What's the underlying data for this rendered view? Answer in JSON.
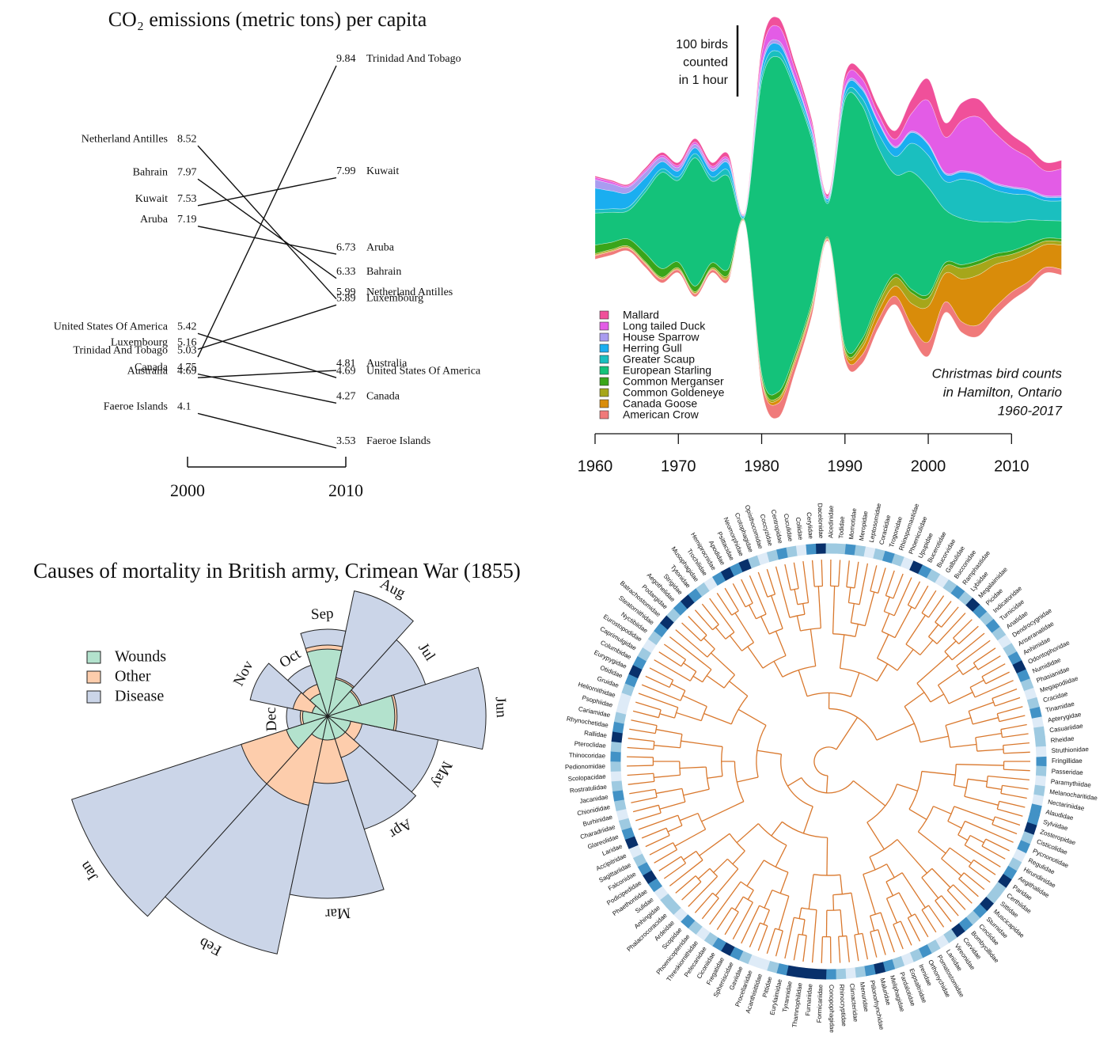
{
  "chart_data": [
    {
      "type": "slope",
      "title": "CO₂ emissions (metric tons) per capita",
      "x": [
        2000,
        2010
      ],
      "series": [
        {
          "name": "Trinidad And Tobago",
          "values": [
            5.03,
            9.84
          ]
        },
        {
          "name": "Netherland Antilles",
          "values": [
            8.52,
            5.99
          ]
        },
        {
          "name": "Bahrain",
          "values": [
            7.97,
            6.33
          ]
        },
        {
          "name": "Kuwait",
          "values": [
            7.53,
            7.99
          ]
        },
        {
          "name": "Aruba",
          "values": [
            7.19,
            6.73
          ]
        },
        {
          "name": "United States Of America",
          "values": [
            5.42,
            4.69
          ]
        },
        {
          "name": "Luxembourg",
          "values": [
            5.16,
            5.89
          ]
        },
        {
          "name": "Canada",
          "values": [
            4.75,
            4.27
          ]
        },
        {
          "name": "Australia",
          "values": [
            4.69,
            4.81
          ]
        },
        {
          "name": "Faeroe Islands",
          "values": [
            4.1,
            3.53
          ]
        }
      ]
    },
    {
      "type": "streamgraph",
      "title": [
        "Christmas bird counts",
        "in Hamilton, Ontario",
        "1960-2017"
      ],
      "annotation": {
        "value": 100,
        "label": [
          "100 birds",
          "counted",
          "in 1 hour"
        ]
      },
      "x": [
        1960,
        1962,
        1964,
        1966,
        1968,
        1970,
        1972,
        1974,
        1976,
        1978,
        1980,
        1982,
        1984,
        1986,
        1988,
        1990,
        1992,
        1994,
        1996,
        1998,
        2000,
        2002,
        2004,
        2006,
        2008,
        2010,
        2012,
        2014,
        2016
      ],
      "xlim": [
        1960,
        2017
      ],
      "xticks": [
        1960,
        1970,
        1980,
        1990,
        2000,
        2010
      ],
      "series": [
        {
          "name": "Mallard",
          "color": "#f0509a",
          "values": [
            2,
            2,
            2,
            3,
            4,
            4,
            5,
            5,
            6,
            1,
            10,
            12,
            8,
            6,
            3,
            8,
            10,
            10,
            12,
            20,
            30,
            20,
            25,
            25,
            20,
            18,
            15,
            12,
            12
          ]
        },
        {
          "name": "Long tailed Duck",
          "color": "#e35ce6",
          "values": [
            3,
            3,
            2,
            3,
            3,
            3,
            3,
            3,
            3,
            1,
            15,
            20,
            12,
            8,
            3,
            10,
            12,
            10,
            10,
            25,
            60,
            50,
            70,
            80,
            70,
            55,
            45,
            35,
            38
          ]
        },
        {
          "name": "House Sparrow",
          "color": "#a99cf0",
          "values": [
            12,
            10,
            8,
            8,
            6,
            5,
            5,
            4,
            4,
            1,
            5,
            5,
            4,
            3,
            1,
            3,
            3,
            2,
            2,
            2,
            2,
            2,
            2,
            2,
            2,
            2,
            2,
            2,
            2
          ]
        },
        {
          "name": "Herring Gull",
          "color": "#1aaef0",
          "values": [
            30,
            25,
            20,
            15,
            10,
            8,
            8,
            8,
            10,
            2,
            10,
            10,
            8,
            6,
            3,
            8,
            12,
            15,
            12,
            15,
            15,
            10,
            10,
            10,
            8,
            8,
            6,
            5,
            5
          ]
        },
        {
          "name": "Greater Scaup",
          "color": "#1abfbf",
          "values": [
            5,
            5,
            5,
            5,
            5,
            5,
            6,
            6,
            8,
            1,
            8,
            8,
            6,
            5,
            3,
            6,
            10,
            20,
            25,
            40,
            45,
            40,
            55,
            55,
            45,
            40,
            35,
            28,
            28
          ]
        },
        {
          "name": "European Starling",
          "color": "#14c27a",
          "values": [
            45,
            42,
            40,
            85,
            135,
            115,
            180,
            115,
            130,
            8,
            410,
            470,
            370,
            230,
            48,
            345,
            330,
            215,
            140,
            165,
            150,
            75,
            65,
            55,
            45,
            40,
            35,
            25,
            25
          ]
        },
        {
          "name": "Common Merganser",
          "color": "#3aa51a",
          "values": [
            12,
            10,
            10,
            12,
            12,
            8,
            8,
            7,
            8,
            1,
            5,
            8,
            6,
            5,
            2,
            5,
            6,
            5,
            5,
            5,
            5,
            5,
            5,
            5,
            5,
            5,
            5,
            4,
            4
          ]
        },
        {
          "name": "Common Goldeneye",
          "color": "#a6a61a",
          "values": [
            2,
            2,
            2,
            2,
            2,
            2,
            2,
            2,
            3,
            0,
            3,
            3,
            3,
            3,
            1,
            3,
            6,
            10,
            12,
            15,
            12,
            10,
            15,
            15,
            10,
            8,
            7,
            5,
            5
          ]
        },
        {
          "name": "Canada Goose",
          "color": "#d98c0a",
          "values": [
            1,
            1,
            1,
            1,
            1,
            1,
            1,
            1,
            2,
            1,
            2,
            5,
            4,
            3,
            1,
            4,
            10,
            12,
            14,
            30,
            50,
            40,
            60,
            70,
            60,
            45,
            40,
            32,
            34
          ]
        },
        {
          "name": "American Crow",
          "color": "#f07a7a",
          "values": [
            5,
            5,
            4,
            5,
            5,
            4,
            4,
            4,
            4,
            1,
            10,
            20,
            12,
            9,
            2,
            8,
            12,
            12,
            12,
            16,
            20,
            15,
            15,
            16,
            13,
            12,
            10,
            8,
            8
          ]
        }
      ]
    },
    {
      "type": "rose",
      "title": "Causes of mortality in British army, Crimean War (1855)",
      "categories": [
        "Jan",
        "Feb",
        "Mar",
        "Apr",
        "May",
        "Jun",
        "Jul",
        "Aug",
        "Sep",
        "Oct",
        "Nov",
        "Dec"
      ],
      "series": [
        {
          "name": "Wounds",
          "color": "#b3e2cd",
          "values": [
            30,
            9,
            9,
            9,
            9,
            72,
            18,
            23,
            72,
            9,
            4,
            10
          ]
        },
        {
          "name": "Other",
          "color": "#fdcdac",
          "values": [
            132,
            132,
            72,
            30,
            20,
            77,
            20,
            25,
            81,
            18,
            20,
            12
          ]
        },
        {
          "name": "Disease",
          "color": "#cbd5e8",
          "values": [
            1156,
            942,
            529,
            225,
            204,
            400,
            169,
            262,
            121,
            46,
            100,
            27
          ]
        }
      ]
    },
    {
      "type": "dendrogram",
      "color": "#d9782d",
      "shade_colors": [
        "#deebf7",
        "#9ecae1",
        "#4292c6",
        "#08306b"
      ],
      "leaves": [
        "Fringillidae",
        "Passeridae",
        "Paramythiidae",
        "Melanocharitidae",
        "Nectariniidae",
        "Alaudidae",
        "Sylviidae",
        "Zosteropidae",
        "Cisticolidae",
        "Pycnonotidae",
        "Regulidae",
        "Hirundinidae",
        "Aegithalidae",
        "Paridae",
        "Certhiidae",
        "Sittidae",
        "Muscicapidae",
        "Sturnidae",
        "Cinclidae",
        "Bombycillidae",
        "Corvidae",
        "Vireonidae",
        "Laniidae",
        "Pomatostomidae",
        "Orthonychidae",
        "Irenidae",
        "Eopsaltriidae",
        "Pardalotidae",
        "Meliphagidae",
        "Maluridae",
        "Ptilonorhynchidae",
        "Menuridae",
        "Climacteridae",
        "Rhinocryptidae",
        "Conopophagidae",
        "Formicariidae",
        "Furnariidae",
        "Thamnophilidae",
        "Tyrannidae",
        "Eurylaimidae",
        "Pittidae",
        "Acanthisittidae",
        "Procellariidae",
        "Gaviidae",
        "Spheniscidae",
        "Fregatidae",
        "Ciconiidae",
        "Pelecanidae",
        "Threskiornithidae",
        "Phoenicopteridae",
        "Scopidae",
        "Ardeidae",
        "Phalacrocoracidae",
        "Anhingidae",
        "Sulidae",
        "Phaethontidae",
        "Podicipedidae",
        "Falconidae",
        "Sagittariidae",
        "Accipitridae",
        "Laridae",
        "Glareolidae",
        "Charadriidae",
        "Burhinidae",
        "Chionididae",
        "Jacanidae",
        "Rostratulidae",
        "Scolopacidae",
        "Pedionomidae",
        "Thinocoridae",
        "Pteroclidae",
        "Rallidae",
        "Rhynochetidae",
        "Cariamidae",
        "Psophiidae",
        "Heliornithidae",
        "Gruidae",
        "Otididae",
        "Eurypygidae",
        "Columbidae",
        "Caprimulgidae",
        "Eurostopodidae",
        "Nyctibiidae",
        "Steatornithidae",
        "Batrachostomidae",
        "Podargidae",
        "Aegothelidae",
        "Strigidae",
        "Tytonidae",
        "Musophagidae",
        "Trochilidae",
        "Hemiprocnidae",
        "Apodidae",
        "Psittacidae",
        "Neomorphidae",
        "Crotophagidae",
        "Opisthocomidae",
        "Coccyzidae",
        "Centropidae",
        "Cuculidae",
        "Coliidae",
        "Cerylidae",
        "Dacelonidae",
        "Alcedinidae",
        "Todidae",
        "Momotidae",
        "Meropidae",
        "Leptosomidae",
        "Coraciidae",
        "Trogonidae",
        "Rhinopomastidae",
        "Phoeniculidae",
        "Upupidae",
        "Bucerotidae",
        "Bucorvidae",
        "Galbulidae",
        "Bucconidae",
        "Ramphastidae",
        "Lybiidae",
        "Megalaimidae",
        "Picidae",
        "Indicatoridae",
        "Turnicidae",
        "Anatidae",
        "Dendrocygnidae",
        "Anseranatidae",
        "Anhimidae",
        "Odontophoridae",
        "Numididae",
        "Phasianidae",
        "Megapodiidae",
        "Cracidae",
        "Tinamidae",
        "Apterygidae",
        "Casuariidae",
        "Rheidae",
        "Struthionidae"
      ],
      "leaf_shades": [
        3,
        2,
        1,
        2,
        1,
        3,
        3,
        4,
        2,
        3,
        1,
        2,
        3,
        4,
        2,
        2,
        4,
        3,
        2,
        3,
        4,
        2,
        1,
        2,
        3,
        2,
        1,
        2,
        3,
        4,
        3,
        2,
        1,
        2,
        3,
        4,
        4,
        4,
        4,
        3,
        2,
        1,
        1,
        2,
        3,
        4,
        3,
        2,
        1,
        2,
        3,
        1,
        2,
        2,
        1,
        3,
        4,
        3,
        2,
        1,
        4,
        3,
        2,
        1,
        2,
        3,
        2,
        1,
        2,
        3,
        2,
        4,
        3,
        2,
        1,
        1,
        2,
        3,
        4,
        3,
        2,
        1,
        2,
        3,
        4,
        2,
        3,
        4,
        3,
        2,
        1,
        3,
        4,
        3,
        4,
        2,
        1,
        2,
        3,
        2,
        1,
        3,
        4,
        2,
        2,
        3,
        2,
        1,
        2,
        3,
        2,
        1,
        4,
        3,
        2,
        1,
        2,
        3,
        2,
        4,
        3,
        2,
        3,
        2,
        1,
        2,
        3,
        4,
        3,
        2,
        1,
        2,
        3,
        1,
        2,
        2,
        1
      ]
    }
  ]
}
